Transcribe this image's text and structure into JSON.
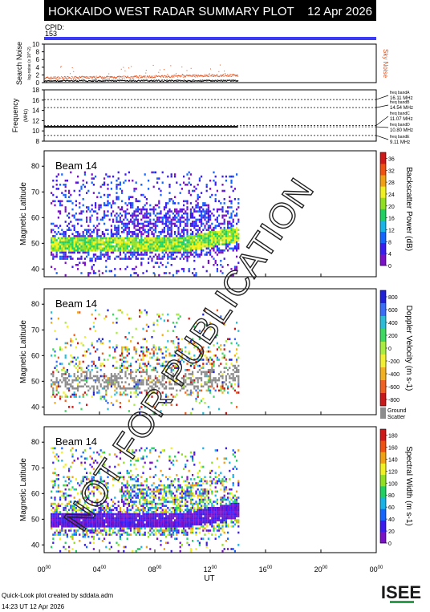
{
  "header": {
    "title": "HOKKAIDO WEST RADAR SUMMARY PLOT",
    "date": "12 Apr 2026",
    "cpid_label": "CPID:",
    "cpid_value": "153"
  },
  "watermark": "NOT FOR PUBLICATION",
  "colors": {
    "header_bg": "#000000",
    "cpid_bar": "#3b3bf5",
    "noise_sky": "#e8501a",
    "noise_search": "#000000",
    "ground_scatter": "#8c8c8c"
  },
  "footer": {
    "created": "Quick-Look plot created by sddata.adm",
    "timestamp": "14:23 UT 12 Apr 2026",
    "logo": "ISEE"
  },
  "chart_data": [
    {
      "type": "line",
      "panel": "noise",
      "ylabel": "Search Noise",
      "yunit": "log-noise (x 10^-2)",
      "ylim": [
        0,
        10
      ],
      "yticks": [
        "0",
        "2",
        "4",
        "6",
        "8",
        "10"
      ],
      "series": [
        {
          "name": "Sky Noise",
          "x": [
            0,
            2,
            4,
            6,
            8,
            10,
            12,
            14
          ],
          "values": [
            1.3,
            1.4,
            1.5,
            1.5,
            1.7,
            1.8,
            1.9,
            2.0
          ]
        },
        {
          "x": [
            0,
            2,
            4,
            6,
            8,
            10,
            12,
            14
          ],
          "values": [
            0.4,
            0.5,
            0.5,
            0.5,
            0.5,
            0.5,
            0.5,
            0.5
          ]
        }
      ]
    },
    {
      "type": "line",
      "panel": "frequency",
      "ylabel": "Frequency",
      "yunit": "(MHz)",
      "ylim": [
        8,
        18
      ],
      "yticks": [
        "8",
        "10",
        "12",
        "14",
        "16",
        "18"
      ],
      "bands": [
        {
          "name": "freq bandA",
          "value_label": "16.11 MHz",
          "mhz": 16.11
        },
        {
          "name": "freq bandB",
          "value_label": "14.54 MHz",
          "mhz": 14.54
        },
        {
          "name": "freq bandC",
          "value_label": "11.07 MHz",
          "mhz": 11.07
        },
        {
          "name": "freq bandD",
          "value_label": "10.80 MHz",
          "mhz": 10.8
        },
        {
          "name": "freq bandE",
          "value_label": "9.11 MHz",
          "mhz": 9.11
        }
      ],
      "series": [
        {
          "x": [
            0,
            14
          ],
          "values": [
            10.8,
            10.8
          ]
        }
      ]
    },
    {
      "type": "heatmap",
      "panel": "power",
      "beam_label": "Beam 14",
      "ylabel": "Magnetic Latitude",
      "ylim": [
        37,
        86
      ],
      "yticks": [
        "40",
        "50",
        "60",
        "70",
        "80"
      ],
      "colorbar_label": "Backscatter Power (dB)",
      "colorbar_ticks": [
        "0",
        "4",
        "8",
        "12",
        "16",
        "20",
        "24",
        "28",
        "32",
        "36"
      ],
      "colorbar_range": [
        0,
        38
      ],
      "data_range_ut": [
        0,
        14
      ],
      "echo_band_center": [
        50,
        50,
        49,
        49,
        50,
        51,
        52,
        54
      ],
      "echo_band_x": [
        0,
        2,
        4,
        6,
        8,
        10,
        12,
        14
      ]
    },
    {
      "type": "heatmap",
      "panel": "velocity",
      "beam_label": "Beam 14",
      "ylabel": "Magnetic Latitude",
      "ylim": [
        37,
        86
      ],
      "yticks": [
        "40",
        "50",
        "60",
        "70",
        "80"
      ],
      "colorbar_label": "Doppler Velocity (m s-1)",
      "colorbar_ticks": [
        "800",
        "600",
        "400",
        "200",
        "0",
        "-200",
        "-400",
        "-600",
        "-800"
      ],
      "colorbar_range": [
        -900,
        900
      ],
      "ground_scatter_label": [
        "Ground",
        "Scatter"
      ],
      "data_range_ut": [
        0,
        14
      ]
    },
    {
      "type": "heatmap",
      "panel": "width",
      "beam_label": "Beam 14",
      "ylabel": "Magnetic Latitude",
      "ylim": [
        37,
        86
      ],
      "yticks": [
        "40",
        "50",
        "60",
        "70",
        "80"
      ],
      "colorbar_label": "Spectral Width (m s-1)",
      "colorbar_ticks": [
        "0",
        "20",
        "40",
        "60",
        "80",
        "100",
        "120",
        "140",
        "160",
        "180"
      ],
      "colorbar_range": [
        0,
        190
      ],
      "data_range_ut": [
        0,
        14
      ]
    }
  ],
  "xaxis": {
    "label": "UT",
    "ticks": [
      {
        "hour": "00",
        "min": "00"
      },
      {
        "hour": "04",
        "min": "00"
      },
      {
        "hour": "08",
        "min": "00"
      },
      {
        "hour": "12",
        "min": "00"
      },
      {
        "hour": "16",
        "min": "00"
      },
      {
        "hour": "20",
        "min": "00"
      },
      {
        "hour": "00",
        "min": "00"
      }
    ]
  }
}
